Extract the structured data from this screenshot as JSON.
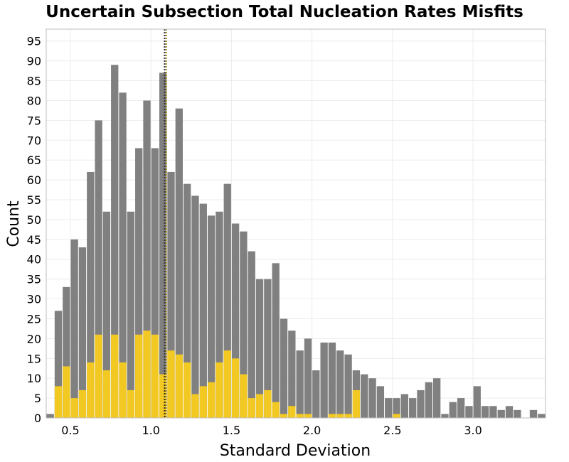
{
  "chart_data": {
    "type": "bar",
    "title": "Uncertain Subsection Total Nucleation Rates Misfits",
    "xlabel": "Standard Deviation",
    "ylabel": "Count",
    "xlim": [
      0.35,
      3.45
    ],
    "ylim": [
      0,
      98
    ],
    "x_ticks": [
      0.5,
      1.0,
      1.5,
      2.0,
      2.5,
      3.0
    ],
    "x_tick_labels": [
      "0.5",
      "1.0",
      "1.5",
      "2.0",
      "2.5",
      "3.0"
    ],
    "y_ticks": [
      0,
      5,
      10,
      15,
      20,
      25,
      30,
      35,
      40,
      45,
      50,
      55,
      60,
      65,
      70,
      75,
      80,
      85,
      90,
      95
    ],
    "y_tick_labels": [
      "0",
      "5",
      "10",
      "15",
      "20",
      "25",
      "30",
      "35",
      "40",
      "45",
      "50",
      "55",
      "60",
      "65",
      "70",
      "75",
      "80",
      "85",
      "90",
      "95"
    ],
    "grid": true,
    "legend": "none",
    "bin_start": 0.35,
    "bin_width": 0.05,
    "series": [
      {
        "color": "#808080",
        "values": [
          1,
          27,
          33,
          45,
          43,
          62,
          75,
          52,
          89,
          82,
          52,
          68,
          80,
          68,
          87,
          62,
          78,
          59,
          56,
          54,
          51,
          52,
          59,
          49,
          47,
          42,
          35,
          35,
          39,
          25,
          22,
          17,
          20,
          12,
          19,
          19,
          17,
          16,
          12,
          11,
          10,
          8,
          5,
          5,
          6,
          5,
          7,
          9,
          10,
          1,
          4,
          5,
          3,
          8,
          3,
          3,
          2,
          3,
          2,
          0,
          2,
          1
        ]
      },
      {
        "color": "#f2c822",
        "values": [
          0,
          8,
          13,
          5,
          7,
          14,
          21,
          12,
          21,
          14,
          7,
          21,
          22,
          21,
          11,
          17,
          16,
          14,
          6,
          8,
          9,
          14,
          17,
          15,
          11,
          5,
          6,
          7,
          4,
          1,
          3,
          1,
          1,
          0,
          0,
          1,
          1,
          1,
          7,
          0,
          0,
          0,
          0,
          1,
          0,
          0,
          0,
          0,
          0,
          0,
          0,
          0,
          0,
          0,
          0,
          0,
          0,
          0,
          0,
          0,
          0,
          0
        ]
      }
    ],
    "vlines": [
      {
        "x": 1.085,
        "color": "#2e2e2e",
        "style": "dotted"
      },
      {
        "x": 1.095,
        "color": "#a08a1c",
        "style": "dotted"
      }
    ]
  }
}
